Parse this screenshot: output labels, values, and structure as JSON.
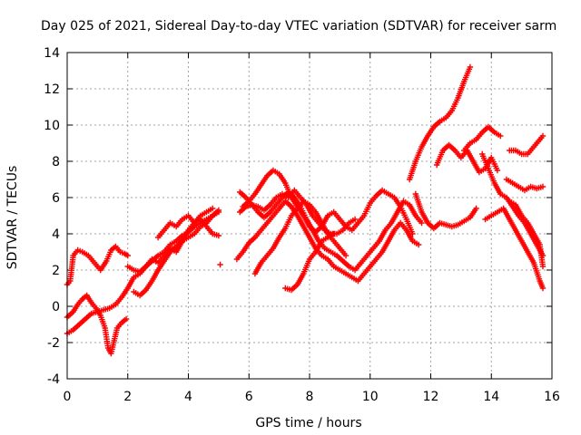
{
  "chart_data": {
    "type": "scatter",
    "title": "Day 025 of 2021, Sidereal Day-to-day VTEC variation (SDTVAR) for receiver sarm",
    "xlabel": "GPS time / hours",
    "ylabel": "SDTVAR / TECUs",
    "xlim": [
      0,
      16
    ],
    "ylim": [
      -4,
      14
    ],
    "x_ticks": [
      "0",
      "2",
      "4",
      "6",
      "8",
      "10",
      "12",
      "14",
      "16"
    ],
    "y_ticks": [
      "-4",
      "-2",
      "0",
      "2",
      "4",
      "6",
      "8",
      "10",
      "12",
      "14"
    ],
    "grid": true,
    "legend": "none",
    "marker": "plus",
    "series_color": "#ff0000",
    "series": [
      {
        "x": [
          0.0,
          0.2,
          0.35,
          0.5,
          0.65,
          0.8,
          0.95,
          1.1,
          1.25,
          1.35,
          1.45,
          1.55,
          1.65,
          1.8,
          1.95
        ],
        "y": [
          -0.6,
          -0.3,
          0.1,
          0.4,
          0.6,
          0.2,
          -0.1,
          -0.5,
          -1.2,
          -2.3,
          -2.6,
          -1.9,
          -1.2,
          -0.9,
          -0.7
        ]
      },
      {
        "x": [
          0.0,
          0.2,
          0.4,
          0.6,
          0.8,
          1.0,
          1.2,
          1.4,
          1.6,
          1.8,
          2.0,
          2.2,
          2.4,
          2.6,
          2.8,
          3.0,
          3.2,
          3.4,
          3.6,
          3.8,
          4.0,
          4.2,
          4.4,
          4.6,
          4.8,
          5.0
        ],
        "y": [
          -1.5,
          -1.3,
          -1.0,
          -0.7,
          -0.4,
          -0.3,
          -0.2,
          -0.1,
          0.1,
          0.5,
          1.0,
          1.6,
          1.8,
          2.2,
          2.5,
          2.8,
          3.0,
          3.4,
          3.6,
          3.9,
          4.1,
          4.4,
          4.6,
          4.8,
          5.0,
          5.2
        ]
      },
      {
        "x": [
          0.0,
          0.1,
          0.2,
          0.35,
          0.5,
          0.7,
          0.9,
          1.1,
          1.3,
          1.45,
          1.6,
          1.75,
          1.9,
          2.0
        ],
        "y": [
          1.2,
          1.4,
          2.8,
          3.1,
          3.0,
          2.8,
          2.4,
          2.0,
          2.5,
          3.1,
          3.3,
          3.0,
          2.9,
          2.8
        ]
      },
      {
        "x": [
          2.2,
          2.4,
          2.6,
          2.8,
          3.0,
          3.2,
          3.4,
          3.6,
          3.8,
          4.0,
          4.2,
          4.4,
          4.6,
          4.8,
          5.0
        ],
        "y": [
          0.8,
          0.6,
          0.9,
          1.4,
          2.0,
          2.5,
          3.0,
          3.3,
          3.6,
          4.2,
          4.6,
          4.8,
          4.4,
          4.0,
          3.9
        ]
      },
      {
        "x": [
          2.0,
          2.2,
          2.4,
          2.6,
          2.8,
          3.0,
          3.2,
          3.4,
          3.6,
          3.8,
          4.0,
          4.2,
          4.4,
          4.6,
          4.8,
          5.0
        ],
        "y": [
          2.2,
          2.0,
          1.9,
          2.2,
          2.6,
          2.4,
          2.8,
          3.2,
          3.0,
          3.6,
          3.8,
          4.0,
          4.4,
          4.6,
          5.0,
          5.3
        ]
      },
      {
        "x": [
          3.0,
          3.2,
          3.4,
          3.6,
          3.8,
          4.0,
          4.2,
          4.4,
          4.6,
          4.8
        ],
        "y": [
          3.8,
          4.2,
          4.6,
          4.4,
          4.8,
          5.0,
          4.6,
          5.0,
          5.2,
          5.4
        ]
      },
      {
        "x": [
          5.05
        ],
        "y": [
          2.3
        ]
      },
      {
        "x": [
          5.8,
          6.0,
          6.2,
          6.4,
          6.6,
          6.8,
          7.0,
          7.2,
          7.4,
          7.6,
          7.8,
          8.0,
          8.2,
          8.4,
          8.6,
          8.8,
          9.0,
          9.2,
          9.4,
          9.6,
          9.8,
          10.0,
          10.2,
          10.4,
          10.6,
          10.8,
          11.0,
          11.2,
          11.4
        ],
        "y": [
          5.5,
          5.8,
          6.2,
          6.7,
          7.2,
          7.5,
          7.3,
          6.8,
          6.0,
          5.5,
          5.0,
          4.4,
          4.1,
          4.4,
          5.0,
          5.2,
          4.8,
          4.4,
          4.2,
          4.6,
          5.0,
          5.7,
          6.1,
          6.4,
          6.2,
          6.0,
          5.5,
          4.8,
          4.0
        ]
      },
      {
        "x": [
          5.7,
          5.9,
          6.1,
          6.3,
          6.5,
          6.7,
          6.9,
          7.1,
          7.3,
          7.5,
          7.7,
          7.9,
          8.1,
          8.3,
          8.5,
          8.7,
          8.9,
          9.1,
          9.3,
          9.5
        ],
        "y": [
          5.2,
          5.5,
          5.6,
          5.5,
          5.3,
          5.6,
          6.0,
          6.2,
          6.0,
          6.4,
          6.0,
          5.6,
          5.0,
          4.6,
          4.2,
          4.0,
          4.0,
          4.2,
          4.6,
          4.8
        ]
      },
      {
        "x": [
          5.7,
          5.9,
          6.1,
          6.3,
          6.5,
          6.7,
          6.9,
          7.1,
          7.3,
          7.5,
          7.7,
          7.9,
          8.1,
          8.3,
          8.5,
          8.7,
          8.9,
          9.1,
          9.3,
          9.5,
          9.7,
          9.9,
          10.1,
          10.3,
          10.5,
          10.7,
          10.9,
          11.1,
          11.3,
          11.5,
          11.7
        ],
        "y": [
          6.3,
          6.0,
          5.6,
          5.2,
          4.9,
          5.2,
          5.6,
          6.0,
          6.3,
          6.0,
          5.5,
          4.8,
          4.2,
          3.6,
          3.2,
          3.0,
          2.8,
          2.5,
          2.2,
          2.0,
          2.4,
          2.8,
          3.2,
          3.6,
          4.2,
          4.6,
          5.2,
          5.8,
          5.6,
          5.0,
          4.6
        ]
      },
      {
        "x": [
          5.6,
          5.8,
          6.0,
          6.2,
          6.4,
          6.6,
          6.8,
          7.0,
          7.2,
          7.4,
          7.6,
          7.8,
          8.0,
          8.2,
          8.4,
          8.6,
          8.8,
          9.0,
          9.2,
          9.4,
          9.6,
          9.8,
          10.0,
          10.2,
          10.4,
          10.6,
          10.8,
          11.0,
          11.2,
          11.4,
          11.6
        ],
        "y": [
          2.6,
          3.0,
          3.5,
          3.8,
          4.2,
          4.6,
          5.0,
          5.4,
          5.8,
          5.5,
          5.0,
          4.4,
          3.8,
          3.2,
          2.8,
          2.6,
          2.2,
          2.0,
          1.8,
          1.6,
          1.4,
          1.8,
          2.2,
          2.6,
          3.0,
          3.6,
          4.2,
          4.6,
          4.2,
          3.6,
          3.4
        ]
      },
      {
        "x": [
          6.2,
          6.4,
          6.6,
          6.8,
          7.0,
          7.2,
          7.4,
          7.6,
          7.8,
          8.0,
          8.2,
          8.4,
          8.6,
          8.8,
          9.0,
          9.2
        ],
        "y": [
          1.8,
          2.4,
          2.8,
          3.2,
          3.8,
          4.3,
          5.0,
          5.4,
          5.8,
          5.6,
          5.2,
          4.6,
          4.0,
          3.6,
          3.2,
          2.8
        ]
      },
      {
        "x": [
          7.2,
          7.4,
          7.6,
          7.8,
          8.0,
          8.2,
          8.4,
          8.6,
          8.8
        ],
        "y": [
          1.0,
          0.9,
          1.2,
          1.8,
          2.6,
          3.0,
          3.6,
          3.8,
          4.0
        ]
      },
      {
        "x": [
          11.3,
          11.5,
          11.7,
          11.9,
          12.1,
          12.3,
          12.5,
          12.7,
          12.9,
          13.1,
          13.3
        ],
        "y": [
          7.0,
          8.0,
          8.8,
          9.4,
          9.9,
          10.2,
          10.4,
          10.8,
          11.5,
          12.4,
          13.2
        ]
      },
      {
        "x": [
          11.5,
          11.7,
          11.9,
          12.1,
          12.3,
          12.5,
          12.7,
          12.9,
          13.1,
          13.3,
          13.5
        ],
        "y": [
          6.2,
          5.2,
          4.6,
          4.3,
          4.6,
          4.5,
          4.4,
          4.5,
          4.7,
          4.9,
          5.4
        ]
      },
      {
        "x": [
          12.2,
          12.4,
          12.6,
          12.8,
          13.0,
          13.2,
          13.4,
          13.6,
          13.8,
          14.0,
          14.2
        ],
        "y": [
          7.8,
          8.6,
          8.9,
          8.6,
          8.2,
          8.6,
          8.0,
          7.4,
          7.6,
          8.2,
          7.5
        ]
      },
      {
        "x": [
          13.1,
          13.3,
          13.5,
          13.7,
          13.9,
          14.1,
          14.3
        ],
        "y": [
          8.6,
          9.0,
          9.2,
          9.6,
          9.9,
          9.6,
          9.4
        ]
      },
      {
        "x": [
          13.7,
          13.9,
          14.1,
          14.3,
          14.5,
          14.7,
          14.9,
          15.1,
          15.3,
          15.5,
          15.7
        ],
        "y": [
          8.4,
          7.6,
          6.8,
          6.2,
          6.0,
          5.5,
          5.0,
          4.6,
          4.0,
          3.4,
          2.8
        ]
      },
      {
        "x": [
          14.6,
          14.8,
          15.0,
          15.2,
          15.4,
          15.6,
          15.7
        ],
        "y": [
          8.6,
          8.6,
          8.4,
          8.4,
          8.8,
          9.2,
          9.4
        ]
      },
      {
        "x": [
          14.5,
          14.7,
          14.9,
          15.1,
          15.3,
          15.5,
          15.7
        ],
        "y": [
          7.0,
          6.8,
          6.6,
          6.4,
          6.6,
          6.5,
          6.6
        ]
      },
      {
        "x": [
          13.8,
          14.0,
          14.2,
          14.4,
          14.6,
          14.8,
          15.0,
          15.2,
          15.4,
          15.6,
          15.7
        ],
        "y": [
          4.8,
          5.0,
          5.2,
          5.4,
          4.8,
          4.2,
          3.6,
          3.0,
          2.4,
          1.4,
          1.0
        ]
      },
      {
        "x": [
          14.6,
          14.8,
          15.0,
          15.2,
          15.4,
          15.6,
          15.7
        ],
        "y": [
          5.8,
          5.6,
          5.0,
          4.6,
          4.0,
          3.4,
          2.2
        ]
      }
    ]
  }
}
